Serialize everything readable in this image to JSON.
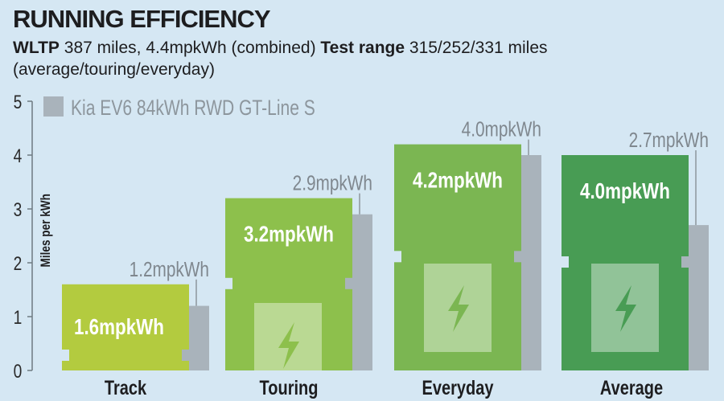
{
  "title": "RUNNING EFFICIENCY",
  "subtitle": {
    "wltp_label": "WLTP",
    "wltp_text": " 387 miles, 4.4mpkWh (combined) ",
    "test_label": "Test range",
    "test_text": " 315/252/331 miles (average/touring/everyday)"
  },
  "colors": {
    "background": "#d5e7f3",
    "comparison": "#a9b3bb",
    "track": "#b3cb3f",
    "touring": "#8dc04c",
    "everyday": "#7bb652",
    "average": "#489c54"
  },
  "chart_data": {
    "type": "bar",
    "ylabel": "Miles per kWh",
    "ylim": [
      0,
      5
    ],
    "yticks": [
      "0",
      "1",
      "2",
      "3",
      "4",
      "5"
    ],
    "categories": [
      "Track",
      "Touring",
      "Everyday",
      "Average"
    ],
    "series": [
      {
        "name": "",
        "values": [
          1.6,
          3.2,
          4.2,
          4.0
        ],
        "labels": [
          "1.6mpkWh",
          "3.2mpkWh",
          "4.2mpkWh",
          "4.0mpkWh"
        ]
      },
      {
        "name": "Kia EV6 84kWh RWD GT-Line S",
        "values": [
          1.2,
          2.9,
          4.0,
          2.7
        ],
        "labels": [
          "1.2mpkWh",
          "2.9mpkWh",
          "4.0mpkWh",
          "2.7mpkWh"
        ]
      }
    ],
    "legend": "top-left",
    "grid": false
  }
}
